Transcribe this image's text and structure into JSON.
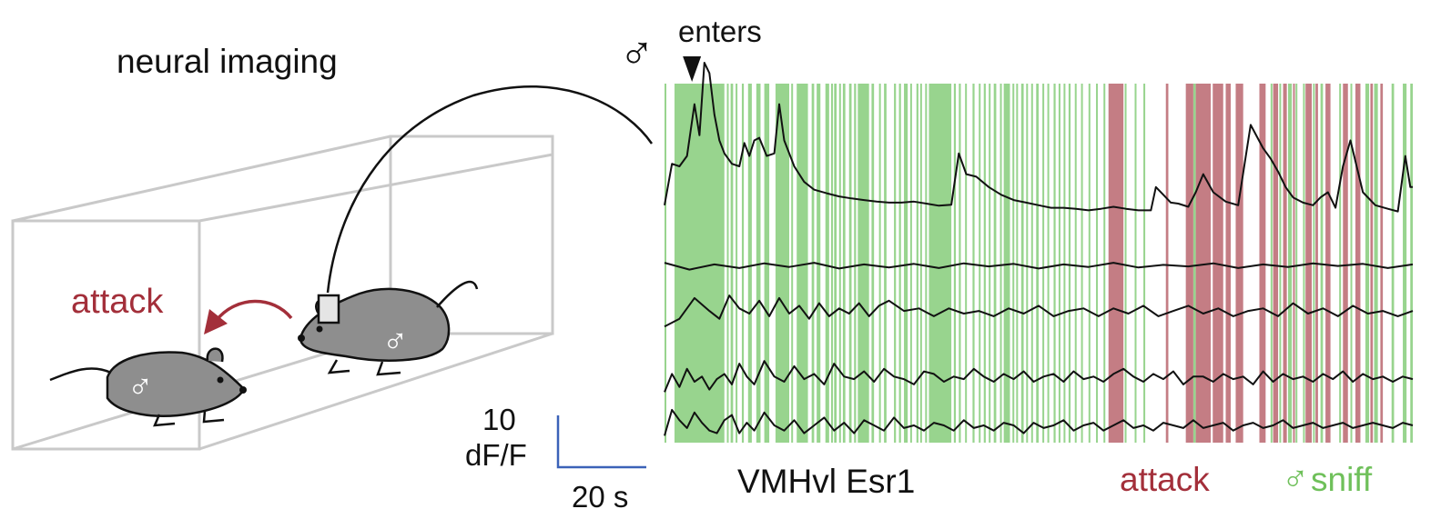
{
  "labels": {
    "neural_imaging": "neural imaging",
    "attack_arrow": "attack",
    "male_symbol": "♂",
    "enters": "enters",
    "scale_value": "10",
    "scale_unit": "dF/F",
    "time_scale": "20 s",
    "cell_type": "VMHvl Esr1",
    "legend_attack": "attack",
    "legend_sniff": "sniff"
  },
  "colors": {
    "sniff": "#98d48e",
    "attack": "#c47d84",
    "attack_text": "#a32f3a",
    "sniff_text": "#6fc05a",
    "scale_bar": "#3b62b8",
    "cage": "#c9c9c9",
    "mouse": "#8e8e8e",
    "trace": "#111111"
  },
  "icons": {
    "implant": "head-implant-icon",
    "mouse": "mouse-icon"
  },
  "chart_data": {
    "type": "line",
    "time_range_s": [
      0,
      300
    ],
    "scale_bar": {
      "dff": 10,
      "seconds": 20
    },
    "male_enters_s": 11,
    "behavior_epochs": {
      "sniff": [
        [
          0.0,
          0.6
        ],
        [
          4.0,
          24.0
        ],
        [
          25.0,
          25.5
        ],
        [
          26.5,
          27.5
        ],
        [
          28.5,
          29.0
        ],
        [
          31.0,
          31.8
        ],
        [
          33.5,
          35.0
        ],
        [
          36.8,
          38.5
        ],
        [
          40.0,
          42.0
        ],
        [
          44.5,
          50.0
        ],
        [
          50.8,
          51.5
        ],
        [
          53.0,
          57.5
        ],
        [
          59.0,
          60.0
        ],
        [
          61.0,
          62.5
        ],
        [
          64.5,
          66.0
        ],
        [
          66.8,
          67.5
        ],
        [
          68.0,
          69.0
        ],
        [
          70.0,
          70.6
        ],
        [
          71.5,
          72.5
        ],
        [
          74.0,
          75.0
        ],
        [
          76.0,
          76.8
        ],
        [
          77.5,
          82.0
        ],
        [
          83.0,
          84.0
        ],
        [
          86.0,
          86.6
        ],
        [
          88.0,
          89.0
        ],
        [
          92.0,
          92.8
        ],
        [
          94.0,
          94.8
        ],
        [
          96.0,
          97.5
        ],
        [
          98.5,
          99.0
        ],
        [
          101.0,
          101.8
        ],
        [
          102.5,
          103.2
        ],
        [
          104.5,
          105.2
        ],
        [
          106.0,
          115.0
        ],
        [
          116.0,
          116.8
        ],
        [
          118.0,
          118.8
        ],
        [
          120.5,
          121.2
        ],
        [
          123.5,
          124.3
        ],
        [
          126.0,
          126.7
        ],
        [
          128.0,
          128.8
        ],
        [
          130.0,
          130.7
        ],
        [
          132.0,
          133.0
        ],
        [
          134.5,
          135.2
        ],
        [
          136.0,
          138.5
        ],
        [
          139.5,
          140.2
        ],
        [
          141.0,
          141.7
        ],
        [
          143.0,
          144.0
        ],
        [
          145.0,
          145.7
        ],
        [
          147.0,
          147.7
        ],
        [
          149.0,
          150.0
        ],
        [
          151.5,
          152.2
        ],
        [
          153.5,
          154.2
        ],
        [
          156.0,
          156.8
        ],
        [
          158.0,
          158.6
        ],
        [
          160.0,
          160.7
        ],
        [
          162.0,
          162.8
        ],
        [
          164.5,
          165.2
        ],
        [
          167.0,
          167.6
        ],
        [
          170.0,
          170.6
        ],
        [
          173.0,
          173.6
        ],
        [
          176.0,
          176.6
        ],
        [
          181.0,
          181.5
        ],
        [
          184.5,
          185.0
        ],
        [
          188.5,
          189.0
        ],
        [
          192.0,
          192.5
        ],
        [
          212.0,
          213.0
        ],
        [
          215.0,
          215.7
        ],
        [
          243.0,
          243.6
        ],
        [
          246.5,
          247.2
        ],
        [
          250.0,
          251.5
        ],
        [
          253.0,
          253.7
        ],
        [
          256.0,
          256.7
        ],
        [
          260.0,
          260.6
        ],
        [
          263.0,
          264.0
        ],
        [
          266.0,
          266.7
        ],
        [
          270.5,
          271.0
        ],
        [
          275.0,
          275.7
        ],
        [
          281.0,
          282.5
        ],
        [
          284.5,
          286.0
        ],
        [
          291.5,
          292.5
        ],
        [
          296.0,
          297.5
        ],
        [
          299.0,
          300.0
        ]
      ],
      "attack": [
        [
          178.0,
          184.0
        ],
        [
          201.0,
          202.0
        ],
        [
          209.0,
          212.0
        ],
        [
          213.0,
          219.0
        ],
        [
          219.8,
          224.0
        ],
        [
          225.0,
          227.0
        ],
        [
          229.0,
          232.0
        ],
        [
          238.5,
          241.0
        ],
        [
          244.0,
          246.0
        ],
        [
          248.0,
          249.5
        ],
        [
          252.0,
          252.7
        ],
        [
          257.0,
          259.5
        ],
        [
          261.0,
          262.0
        ],
        [
          265.0,
          267.0
        ],
        [
          272.0,
          274.0
        ],
        [
          277.0,
          279.0
        ],
        [
          283.0,
          284.0
        ],
        [
          287.0,
          288.0
        ]
      ]
    },
    "series": [
      {
        "x": [
          0,
          3,
          6,
          9,
          12,
          14,
          16,
          18,
          20,
          22,
          24,
          27,
          30,
          32,
          34,
          36,
          38,
          41,
          44,
          46,
          48,
          52,
          56,
          60,
          65,
          70,
          75,
          80,
          85,
          90,
          95,
          100,
          105,
          110,
          115,
          118,
          121,
          125,
          130,
          135,
          140,
          145,
          150,
          155,
          160,
          165,
          170,
          175,
          180,
          185,
          190,
          195,
          197,
          200,
          203,
          206,
          210,
          213,
          216,
          220,
          225,
          230,
          235,
          240,
          243,
          246,
          249,
          252,
          256,
          260,
          263,
          266,
          269,
          272,
          275,
          280,
          285,
          290,
          294,
          297,
          299,
          300
        ],
        "y": [
          2.5,
          10.5,
          10.0,
          12.0,
          22.0,
          16.0,
          30.0,
          28.0,
          20.0,
          15.0,
          12.5,
          10.5,
          10.0,
          14.5,
          12.0,
          15.0,
          15.5,
          12.0,
          12.5,
          22.0,
          15.0,
          10.0,
          7.0,
          5.5,
          4.8,
          4.2,
          3.8,
          3.5,
          3.2,
          3.0,
          3.0,
          3.2,
          2.8,
          2.4,
          2.6,
          12.5,
          8.5,
          8.0,
          6.0,
          4.5,
          3.5,
          3.0,
          2.5,
          2.0,
          2.0,
          1.8,
          1.5,
          1.8,
          2.2,
          1.8,
          1.5,
          1.5,
          6.0,
          4.5,
          3.0,
          2.8,
          2.2,
          5.0,
          8.5,
          5.0,
          3.2,
          2.5,
          18.0,
          13.5,
          11.5,
          9.0,
          6.0,
          4.0,
          3.0,
          2.5,
          4.0,
          5.0,
          2.0,
          10.0,
          15.0,
          5.0,
          2.5,
          1.8,
          1.3,
          12.0,
          6.0,
          6.0
        ]
      },
      {
        "x": [
          0,
          10,
          20,
          30,
          40,
          50,
          60,
          70,
          80,
          90,
          100,
          110,
          120,
          130,
          140,
          150,
          160,
          170,
          180,
          190,
          200,
          210,
          220,
          230,
          240,
          250,
          260,
          270,
          280,
          290,
          300
        ],
        "y": [
          0.5,
          -0.8,
          0.2,
          -0.5,
          0.4,
          -0.3,
          0.5,
          -0.6,
          0.2,
          -0.4,
          0.3,
          -0.5,
          0.4,
          -0.2,
          0.3,
          -0.6,
          0.2,
          -0.3,
          0.5,
          -0.4,
          0.1,
          -0.2,
          0.4,
          -0.5,
          0.2,
          -0.3,
          0.4,
          -0.1,
          0.3,
          -0.5,
          0.2
        ]
      },
      {
        "x": [
          0,
          6,
          12,
          18,
          22,
          26,
          30,
          34,
          38,
          42,
          46,
          50,
          54,
          58,
          62,
          66,
          70,
          74,
          78,
          82,
          86,
          90,
          96,
          102,
          108,
          114,
          120,
          126,
          132,
          138,
          144,
          150,
          156,
          162,
          168,
          174,
          180,
          186,
          192,
          198,
          204,
          210,
          216,
          222,
          228,
          234,
          240,
          246,
          252,
          258,
          264,
          270,
          276,
          282,
          288,
          294,
          300
        ],
        "y": [
          -2.5,
          -1.0,
          3.0,
          0.5,
          -1.0,
          3.5,
          1.0,
          0.0,
          2.5,
          -0.5,
          3.0,
          0.0,
          1.5,
          -1.0,
          2.0,
          -0.5,
          1.0,
          0.0,
          2.0,
          -0.5,
          1.5,
          2.5,
          0.5,
          1.0,
          -0.5,
          1.0,
          0.0,
          0.5,
          -0.5,
          1.0,
          0.0,
          1.5,
          -0.5,
          0.5,
          1.0,
          -0.5,
          1.0,
          0.0,
          1.5,
          -0.5,
          0.5,
          1.5,
          0.0,
          1.0,
          -0.5,
          0.5,
          1.0,
          -0.5,
          2.0,
          0.0,
          1.0,
          -0.5,
          1.5,
          0.0,
          0.5,
          -0.5,
          0.5
        ]
      },
      {
        "x": [
          0,
          3,
          6,
          9,
          12,
          15,
          18,
          21,
          24,
          27,
          30,
          33,
          36,
          40,
          44,
          48,
          52,
          56,
          60,
          64,
          68,
          72,
          76,
          80,
          84,
          88,
          92,
          96,
          100,
          104,
          108,
          112,
          116,
          120,
          124,
          128,
          132,
          136,
          140,
          144,
          148,
          152,
          156,
          160,
          164,
          168,
          172,
          176,
          180,
          184,
          188,
          192,
          196,
          200,
          204,
          208,
          212,
          216,
          220,
          224,
          228,
          232,
          236,
          240,
          244,
          248,
          252,
          256,
          260,
          264,
          268,
          272,
          276,
          280,
          284,
          288,
          292,
          296,
          300
        ],
        "y": [
          -2.0,
          1.5,
          -1.0,
          2.5,
          0.0,
          1.0,
          -1.5,
          0.5,
          1.5,
          -0.5,
          3.5,
          1.0,
          -0.5,
          4.0,
          1.0,
          0.0,
          3.0,
          0.5,
          1.5,
          -0.5,
          3.5,
          1.0,
          0.5,
          2.0,
          0.0,
          2.5,
          1.0,
          0.5,
          -0.5,
          2.0,
          1.5,
          0.0,
          1.0,
          0.5,
          2.5,
          1.0,
          0.0,
          1.5,
          0.5,
          2.0,
          0.0,
          1.0,
          1.5,
          0.0,
          2.0,
          0.5,
          1.0,
          0.0,
          1.5,
          2.5,
          1.0,
          0.0,
          1.5,
          0.5,
          2.0,
          -0.5,
          1.0,
          1.0,
          0.0,
          1.5,
          0.5,
          1.0,
          -0.5,
          2.0,
          0.0,
          1.5,
          0.5,
          1.0,
          0.0,
          1.5,
          0.5,
          2.0,
          0.0,
          1.5,
          0.5,
          1.0,
          0.0,
          1.0,
          0.5
        ]
      },
      {
        "x": [
          0,
          3,
          6,
          9,
          12,
          15,
          18,
          21,
          24,
          27,
          30,
          33,
          36,
          40,
          44,
          48,
          52,
          56,
          60,
          64,
          68,
          72,
          76,
          80,
          84,
          88,
          92,
          96,
          100,
          104,
          108,
          112,
          116,
          120,
          124,
          128,
          132,
          136,
          140,
          144,
          148,
          152,
          156,
          160,
          164,
          168,
          172,
          176,
          180,
          184,
          188,
          192,
          196,
          200,
          204,
          208,
          212,
          216,
          220,
          224,
          228,
          232,
          236,
          240,
          244,
          248,
          252,
          256,
          260,
          264,
          268,
          272,
          276,
          280,
          284,
          288,
          292,
          296,
          300
        ],
        "y": [
          -2.0,
          3.0,
          1.0,
          -0.5,
          2.5,
          0.5,
          -1.0,
          -1.5,
          1.0,
          2.0,
          -1.5,
          0.5,
          -1.0,
          2.5,
          0.0,
          -1.0,
          1.0,
          -1.5,
          0.0,
          1.5,
          -1.0,
          0.5,
          -1.5,
          1.0,
          0.0,
          -1.0,
          1.5,
          -0.5,
          0.0,
          -1.0,
          0.5,
          0.0,
          -1.0,
          1.0,
          -0.5,
          0.0,
          -1.0,
          0.5,
          0.0,
          -1.5,
          0.5,
          -0.5,
          0.0,
          1.0,
          -1.0,
          0.0,
          0.5,
          -1.0,
          0.0,
          1.0,
          -0.5,
          0.0,
          -1.0,
          0.5,
          0.0,
          -0.5,
          1.0,
          -0.5,
          0.0,
          0.5,
          -1.0,
          0.0,
          0.5,
          -0.5,
          0.0,
          1.0,
          -0.5,
          0.0,
          0.5,
          -0.5,
          0.0,
          0.5,
          -0.5,
          0.0,
          0.5,
          0.0,
          -0.5,
          0.5,
          0.0
        ]
      }
    ]
  }
}
